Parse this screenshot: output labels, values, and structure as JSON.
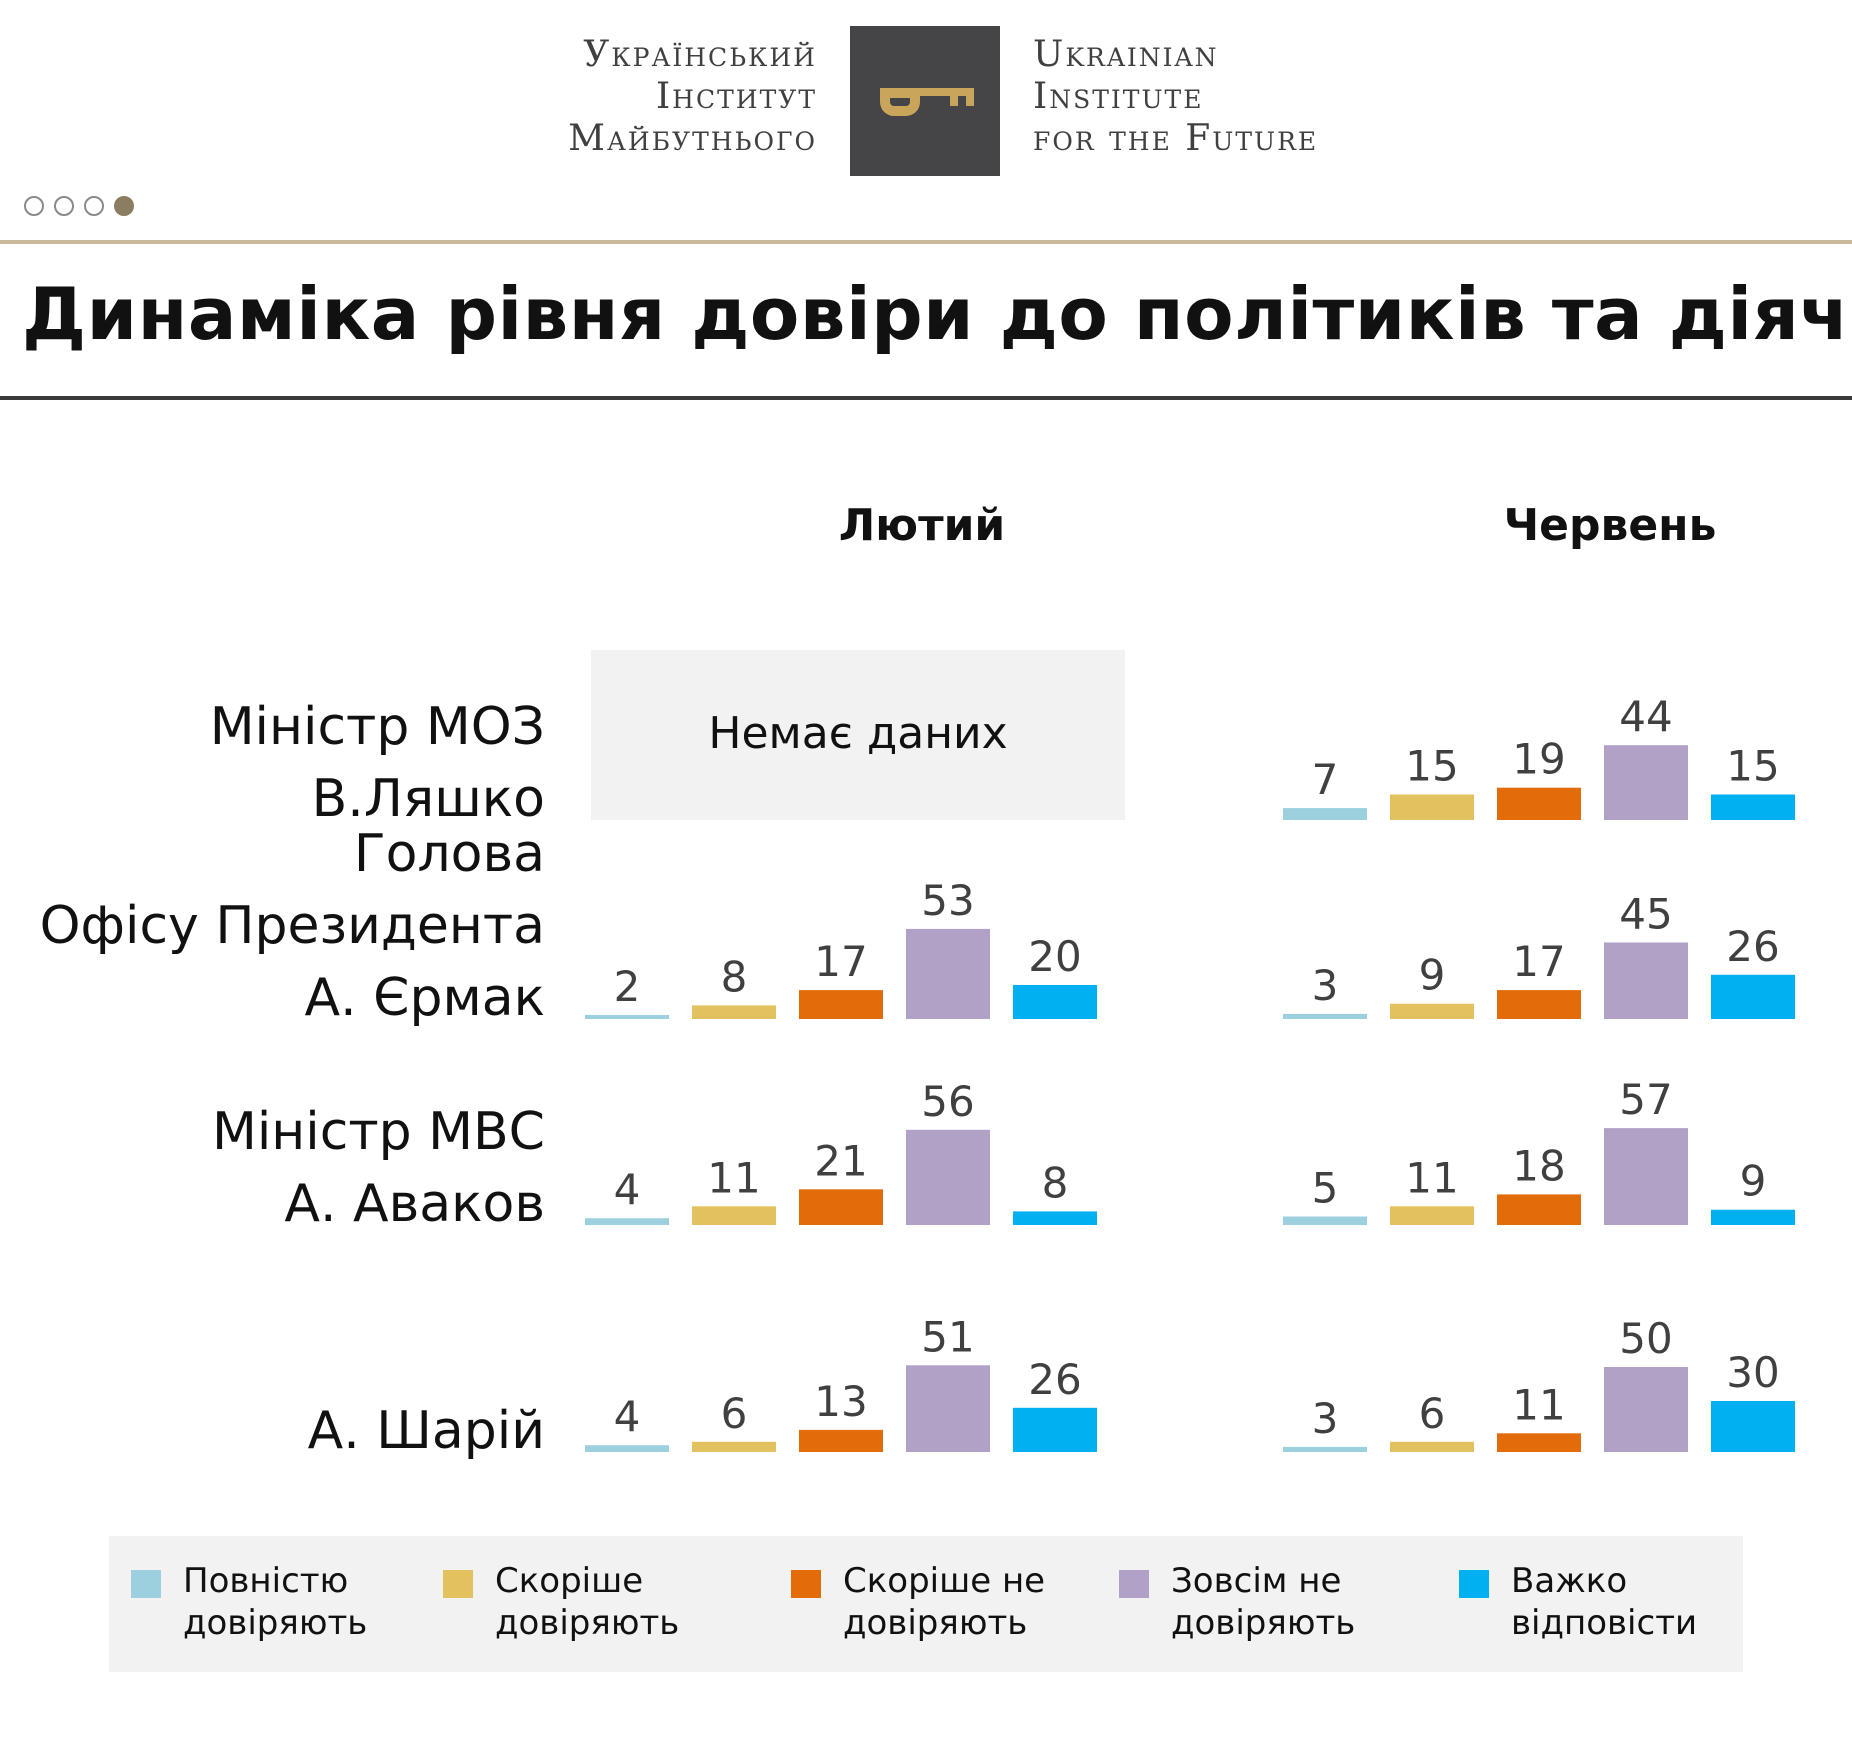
{
  "header": {
    "logo_ua_lines": [
      "Український",
      "Інститут",
      "Майбутнього"
    ],
    "logo_en_lines": [
      "Ukrainian",
      "Institute",
      "for the Future"
    ],
    "logo_icon": "key-icon",
    "pagination": {
      "total": 4,
      "active": 4
    }
  },
  "title": "Динаміка рівня довіри до політиків та діячів",
  "no_data_label": "Немає даних",
  "colors": {
    "full_trust": "#9dd0de",
    "rather_trust": "#e3c15e",
    "rather_distrust": "#e36c0a",
    "no_trust": "#b2a1c7",
    "hard_to_say": "#00b0f0"
  },
  "legend": [
    {
      "label": "Повністю довіряють",
      "color": "#9dd0de"
    },
    {
      "label": "Скоріше довіряють",
      "color": "#e3c15e"
    },
    {
      "label": "Скоріше не довіряють",
      "color": "#e36c0a"
    },
    {
      "label": "Зовсім не довіряють",
      "color": "#b2a1c7"
    },
    {
      "label": "Важко відповісти",
      "color": "#00b0f0"
    }
  ],
  "chart_data": {
    "type": "bar",
    "panels": [
      "Лютий",
      "Червень"
    ],
    "series_names": [
      "Повністю довіряють",
      "Скоріше довіряють",
      "Скоріше не довіряють",
      "Зовсім не довіряють",
      "Важко відповісти"
    ],
    "rows": [
      {
        "label_lines": [
          "Міністр МОЗ",
          "В.Ляшко"
        ],
        "values": [
          null,
          [
            7,
            15,
            19,
            44,
            15
          ]
        ]
      },
      {
        "label_lines": [
          "Голова",
          "Офісу Президента",
          "А. Єрмак"
        ],
        "values": [
          [
            2,
            8,
            17,
            53,
            20
          ],
          [
            3,
            9,
            17,
            45,
            26
          ]
        ]
      },
      {
        "label_lines": [
          "Міністр МВС",
          "А. Аваков"
        ],
        "values": [
          [
            4,
            11,
            21,
            56,
            8
          ],
          [
            5,
            11,
            18,
            57,
            9
          ]
        ]
      },
      {
        "label_lines": [
          "А. Шарій"
        ],
        "values": [
          [
            4,
            6,
            13,
            51,
            26
          ],
          [
            3,
            6,
            11,
            50,
            30
          ]
        ]
      }
    ]
  }
}
